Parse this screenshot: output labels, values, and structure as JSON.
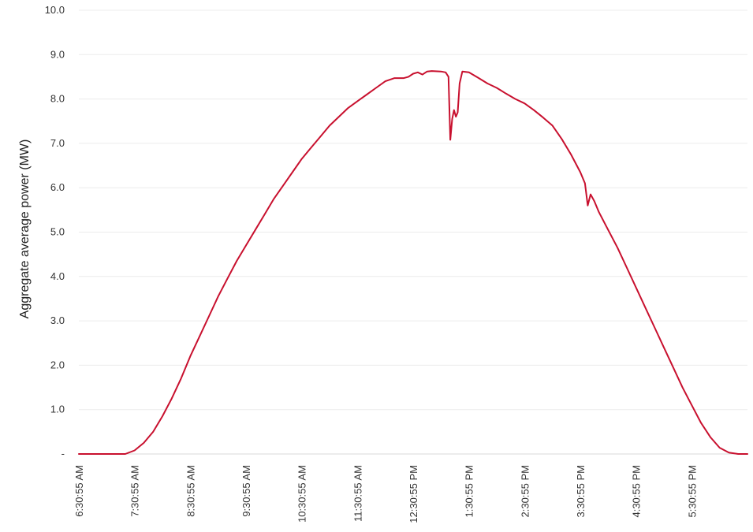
{
  "chart_data": {
    "type": "line",
    "title": "",
    "xlabel": "",
    "ylabel": "Aggregate average power (MW)",
    "ylim": [
      0,
      10
    ],
    "y_ticks": [
      {
        "value": 0,
        "label": "-"
      },
      {
        "value": 1,
        "label": "1.0"
      },
      {
        "value": 2,
        "label": "2.0"
      },
      {
        "value": 3,
        "label": "3.0"
      },
      {
        "value": 4,
        "label": "4.0"
      },
      {
        "value": 5,
        "label": "5.0"
      },
      {
        "value": 6,
        "label": "6.0"
      },
      {
        "value": 7,
        "label": "7.0"
      },
      {
        "value": 8,
        "label": "8.0"
      },
      {
        "value": 9,
        "label": "9.0"
      },
      {
        "value": 10,
        "label": "10.0"
      }
    ],
    "x_ticks": [
      {
        "value": "6:30:55",
        "label": "6:30:55 AM"
      },
      {
        "value": "7:30:55",
        "label": "7:30:55 AM"
      },
      {
        "value": "8:30:55",
        "label": "8:30:55 AM"
      },
      {
        "value": "9:30:55",
        "label": "9:30:55 AM"
      },
      {
        "value": "10:30:55",
        "label": "10:30:55 AM"
      },
      {
        "value": "11:30:55",
        "label": "11:30:55 AM"
      },
      {
        "value": "12:30:55",
        "label": "12:30:55 PM"
      },
      {
        "value": "13:30:55",
        "label": "1:30:55 PM"
      },
      {
        "value": "14:30:55",
        "label": "2:30:55 PM"
      },
      {
        "value": "15:30:55",
        "label": "3:30:55 PM"
      },
      {
        "value": "16:30:55",
        "label": "4:30:55 PM"
      },
      {
        "value": "17:30:55",
        "label": "5:30:55 PM"
      }
    ],
    "xlim": [
      "6:30:55",
      "18:30:55"
    ],
    "grid": true,
    "series": [
      {
        "color": "#c8102e",
        "points": [
          [
            "6:30:55",
            0
          ],
          [
            "7:00:55",
            0
          ],
          [
            "7:20:55",
            0
          ],
          [
            "7:30:55",
            0.08
          ],
          [
            "7:40:55",
            0.25
          ],
          [
            "7:50:55",
            0.5
          ],
          [
            "8:00:55",
            0.85
          ],
          [
            "8:10:55",
            1.25
          ],
          [
            "8:20:55",
            1.7
          ],
          [
            "8:30:55",
            2.2
          ],
          [
            "8:40:55",
            2.65
          ],
          [
            "8:50:55",
            3.1
          ],
          [
            "9:00:55",
            3.55
          ],
          [
            "9:10:55",
            3.95
          ],
          [
            "9:20:55",
            4.35
          ],
          [
            "9:30:55",
            4.7
          ],
          [
            "9:40:55",
            5.05
          ],
          [
            "9:50:55",
            5.4
          ],
          [
            "10:00:55",
            5.75
          ],
          [
            "10:10:55",
            6.05
          ],
          [
            "10:20:55",
            6.35
          ],
          [
            "10:30:55",
            6.65
          ],
          [
            "10:40:55",
            6.9
          ],
          [
            "10:50:55",
            7.15
          ],
          [
            "11:00:55",
            7.4
          ],
          [
            "11:10:55",
            7.6
          ],
          [
            "11:20:55",
            7.8
          ],
          [
            "11:30:55",
            7.95
          ],
          [
            "11:40:55",
            8.1
          ],
          [
            "11:50:55",
            8.25
          ],
          [
            "12:00:55",
            8.4
          ],
          [
            "12:10:55",
            8.47
          ],
          [
            "12:20:55",
            8.47
          ],
          [
            "12:25:55",
            8.5
          ],
          [
            "12:30:55",
            8.57
          ],
          [
            "12:35:55",
            8.6
          ],
          [
            "12:40:55",
            8.55
          ],
          [
            "12:45:55",
            8.62
          ],
          [
            "12:50:55",
            8.63
          ],
          [
            "13:00:55",
            8.62
          ],
          [
            "13:05:55",
            8.6
          ],
          [
            "13:08:55",
            8.5
          ],
          [
            "13:10:55",
            7.08
          ],
          [
            "13:12:55",
            7.55
          ],
          [
            "13:14:55",
            7.75
          ],
          [
            "13:16:55",
            7.6
          ],
          [
            "13:18:55",
            7.7
          ],
          [
            "13:20:55",
            8.35
          ],
          [
            "13:23:55",
            8.62
          ],
          [
            "13:30:55",
            8.6
          ],
          [
            "13:40:55",
            8.48
          ],
          [
            "13:50:55",
            8.35
          ],
          [
            "14:00:55",
            8.25
          ],
          [
            "14:10:55",
            8.12
          ],
          [
            "14:20:55",
            8.0
          ],
          [
            "14:30:55",
            7.9
          ],
          [
            "14:40:55",
            7.75
          ],
          [
            "14:50:55",
            7.58
          ],
          [
            "15:00:55",
            7.4
          ],
          [
            "15:10:55",
            7.1
          ],
          [
            "15:20:55",
            6.75
          ],
          [
            "15:30:55",
            6.35
          ],
          [
            "15:35:55",
            6.1
          ],
          [
            "15:38:55",
            5.6
          ],
          [
            "15:41:55",
            5.85
          ],
          [
            "15:45:55",
            5.7
          ],
          [
            "15:50:55",
            5.45
          ],
          [
            "16:00:55",
            5.05
          ],
          [
            "16:10:55",
            4.65
          ],
          [
            "16:20:55",
            4.2
          ],
          [
            "16:30:55",
            3.75
          ],
          [
            "16:40:55",
            3.3
          ],
          [
            "16:50:55",
            2.85
          ],
          [
            "17:00:55",
            2.4
          ],
          [
            "17:10:55",
            1.95
          ],
          [
            "17:20:55",
            1.5
          ],
          [
            "17:30:55",
            1.1
          ],
          [
            "17:40:55",
            0.7
          ],
          [
            "17:50:55",
            0.38
          ],
          [
            "18:00:55",
            0.14
          ],
          [
            "18:10:55",
            0.03
          ],
          [
            "18:20:55",
            0
          ],
          [
            "18:30:55",
            0
          ]
        ]
      }
    ]
  }
}
